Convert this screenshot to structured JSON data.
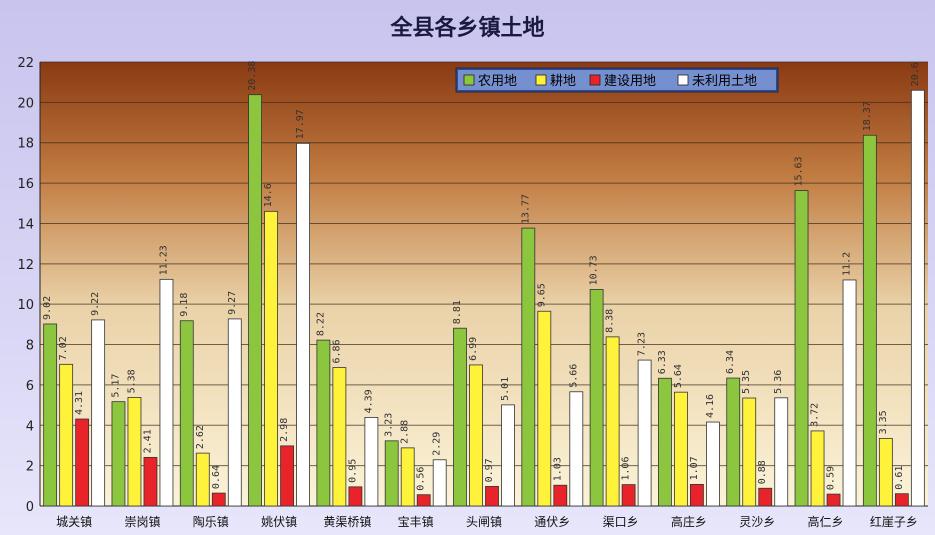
{
  "chart_data": {
    "type": "bar",
    "title": "全县各乡镇土地",
    "xlabel": "",
    "ylabel": "",
    "ylim": [
      0,
      22
    ],
    "yticks": [
      0,
      2,
      4,
      6,
      8,
      10,
      12,
      14,
      16,
      18,
      20,
      22
    ],
    "grid": true,
    "legend_position": "top-right",
    "categories": [
      "城关镇",
      "崇岗镇",
      "陶乐镇",
      "姚伏镇",
      "黄渠桥镇",
      "宝丰镇",
      "头闸镇",
      "通伏乡",
      "渠口乡",
      "高庄乡",
      "灵沙乡",
      "高仁乡",
      "红崖子乡"
    ],
    "series": [
      {
        "name": "农用地",
        "color": "#8cc63f",
        "values": [
          9.02,
          5.17,
          9.18,
          20.38,
          8.22,
          3.23,
          8.81,
          13.77,
          10.73,
          6.33,
          6.34,
          15.63,
          18.37
        ],
        "labels": [
          "9.02",
          "5.17",
          "9.18",
          "20.38",
          "8.22",
          "3.23",
          "8.81",
          "13.77",
          "10.73",
          "6.33",
          "6.34",
          "15.63",
          "18.37"
        ]
      },
      {
        "name": "耕地",
        "color": "#fff23a",
        "values": [
          7.02,
          5.38,
          2.62,
          14.6,
          6.86,
          2.88,
          6.99,
          9.65,
          8.38,
          5.64,
          5.35,
          3.72,
          3.35
        ],
        "labels": [
          "7.02",
          "5.38",
          "2.62",
          "14.6",
          "6.86",
          "2.88",
          "6.99",
          "9.65",
          "8.38",
          "5.64",
          "5.35",
          "3.72",
          "3.35"
        ]
      },
      {
        "name": "建设用地",
        "color": "#e8242a",
        "values": [
          4.31,
          2.41,
          0.64,
          2.98,
          0.95,
          0.56,
          0.97,
          1.03,
          1.06,
          1.07,
          0.88,
          0.59,
          0.61
        ],
        "labels": [
          "4.31",
          "2.41",
          "0.64",
          "2.98",
          "0.95",
          "0.56",
          "0.97",
          "1.03",
          "1.06",
          "1.07",
          "0.88",
          "0.59",
          "0.61"
        ]
      },
      {
        "name": "未利用土地",
        "color": "#ffffff",
        "values": [
          9.22,
          11.23,
          9.27,
          17.97,
          4.39,
          2.29,
          5.01,
          5.66,
          7.23,
          4.16,
          5.36,
          11.2,
          20.6
        ],
        "labels": [
          "9.22",
          "11.23",
          "9.27",
          "17.97",
          "4.39",
          "2.29",
          "5.01",
          "5.66",
          "7.23",
          "4.16",
          "5.36",
          "11.2",
          "20.6"
        ]
      }
    ]
  }
}
